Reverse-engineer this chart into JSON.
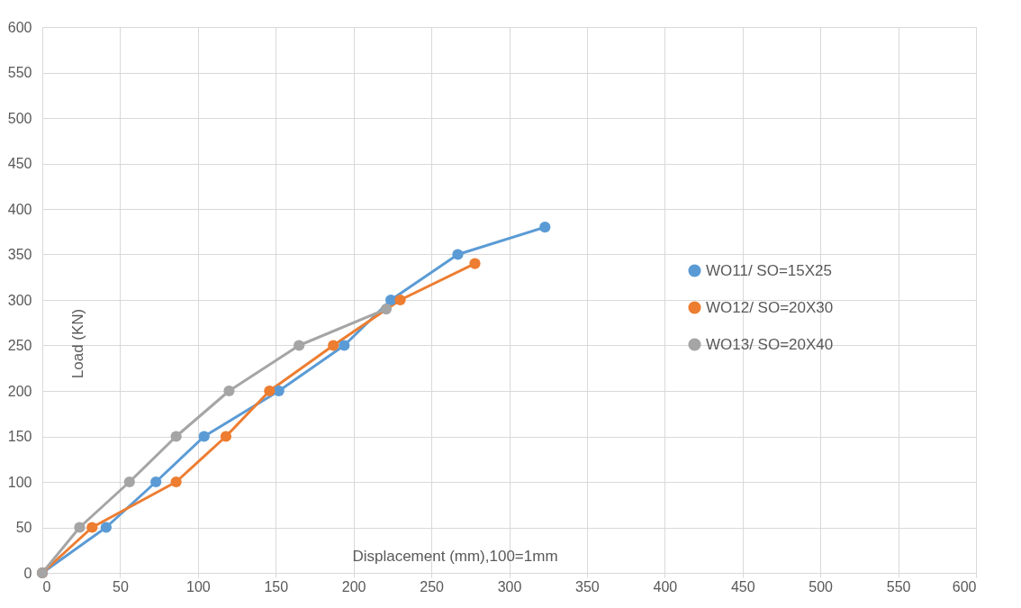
{
  "chart_data": {
    "type": "line",
    "xlabel": "Displacement (mm),100=1mm",
    "ylabel": "Load (KN)",
    "xlim": [
      0,
      600
    ],
    "xticks": [
      0,
      50,
      100,
      150,
      200,
      250,
      300,
      350,
      400,
      450,
      500,
      550,
      600
    ],
    "ylim": [
      0,
      600
    ],
    "yticks": [
      0,
      50,
      100,
      150,
      200,
      250,
      300,
      350,
      400,
      450,
      500,
      550,
      600
    ],
    "grid": true,
    "legend": "right",
    "marker": "circle",
    "line_style": "solid",
    "series": [
      {
        "name": "WO11/ SO=15X25",
        "color": "#5b9bd5",
        "x": [
          0,
          41,
          73,
          104,
          152,
          194,
          224,
          267,
          323
        ],
        "values": [
          0,
          50,
          100,
          150,
          200,
          250,
          300,
          350,
          380
        ]
      },
      {
        "name": "WO12/ SO=20X30",
        "color": "#ed7d31",
        "x": [
          0,
          32,
          86,
          118,
          146,
          187,
          230,
          278
        ],
        "values": [
          0,
          50,
          100,
          150,
          200,
          250,
          300,
          340
        ]
      },
      {
        "name": "WO13/ SO=20X40",
        "color": "#a5a5a5",
        "x": [
          0,
          24,
          56,
          86,
          120,
          165,
          221
        ],
        "values": [
          0,
          50,
          100,
          150,
          200,
          250,
          290
        ]
      }
    ]
  }
}
